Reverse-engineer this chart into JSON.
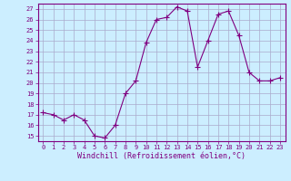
{
  "x": [
    0,
    1,
    2,
    3,
    4,
    5,
    6,
    7,
    8,
    9,
    10,
    11,
    12,
    13,
    14,
    15,
    16,
    17,
    18,
    19,
    20,
    21,
    22,
    23
  ],
  "y": [
    17.2,
    17.0,
    16.5,
    17.0,
    16.5,
    15.0,
    14.8,
    16.0,
    19.0,
    20.2,
    23.8,
    26.0,
    26.2,
    27.2,
    26.8,
    21.5,
    24.0,
    26.5,
    26.8,
    24.5,
    21.0,
    20.2,
    20.2,
    20.5
  ],
  "line_color": "#800080",
  "marker": "+",
  "marker_size": 4,
  "bg_color": "#cceeff",
  "grid_color": "#aaaacc",
  "xlabel": "Windchill (Refroidissement éolien,°C)",
  "ylabel_ticks": [
    15,
    16,
    17,
    18,
    19,
    20,
    21,
    22,
    23,
    24,
    25,
    26,
    27
  ],
  "xlim": [
    -0.5,
    23.5
  ],
  "ylim": [
    14.5,
    27.5
  ],
  "xticks": [
    0,
    1,
    2,
    3,
    4,
    5,
    6,
    7,
    8,
    9,
    10,
    11,
    12,
    13,
    14,
    15,
    16,
    17,
    18,
    19,
    20,
    21,
    22,
    23
  ],
  "axis_color": "#800080",
  "tick_color": "#800080"
}
